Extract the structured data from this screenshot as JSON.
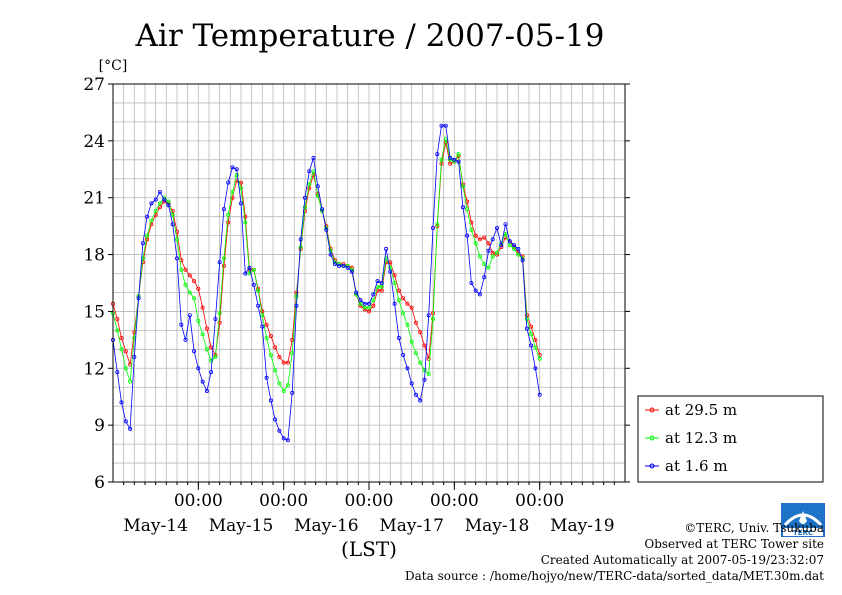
{
  "chart_data": {
    "type": "line",
    "title": "Air Temperature / 2007-05-19",
    "ylabel": "[°C]",
    "xlabel": "(LST)",
    "ylim": [
      6,
      27
    ],
    "yticks": [
      "6",
      "9",
      "12",
      "15",
      "18",
      "21",
      "24",
      "27"
    ],
    "x_day_range": [
      -0.5,
      5.5
    ],
    "time_ticks": {
      "positions": [
        0.5,
        1.5,
        2.5,
        3.5,
        4.5
      ],
      "label": "00:00"
    },
    "day_labels": [
      {
        "x": 0,
        "label": "May-14"
      },
      {
        "x": 1,
        "label": "May-15"
      },
      {
        "x": 2,
        "label": "May-16"
      },
      {
        "x": 3,
        "label": "May-17"
      },
      {
        "x": 4,
        "label": "May-18"
      },
      {
        "x": 5,
        "label": "May-19"
      }
    ],
    "grid": true,
    "legend_position": "right",
    "series": [
      {
        "name": "at 29.5 m",
        "color": "#ff0000",
        "points": [
          [
            -0.5,
            15.4
          ],
          [
            -0.45,
            14.6
          ],
          [
            -0.4,
            13.6
          ],
          [
            -0.35,
            12.9
          ],
          [
            -0.3,
            12.2
          ],
          [
            -0.25,
            13.9
          ],
          [
            -0.2,
            15.8
          ],
          [
            -0.15,
            17.6
          ],
          [
            -0.1,
            18.8
          ],
          [
            -0.05,
            19.6
          ],
          [
            0,
            20.1
          ],
          [
            0.05,
            20.5
          ],
          [
            0.1,
            20.8
          ],
          [
            0.15,
            20.7
          ],
          [
            0.2,
            20.3
          ],
          [
            0.25,
            19.2
          ],
          [
            0.3,
            17.7
          ],
          [
            0.35,
            17.2
          ],
          [
            0.4,
            16.9
          ],
          [
            0.45,
            16.6
          ],
          [
            0.5,
            16.2
          ],
          [
            0.55,
            15.2
          ],
          [
            0.6,
            14.1
          ],
          [
            0.65,
            13.1
          ],
          [
            0.7,
            12.7
          ],
          [
            0.75,
            14.4
          ],
          [
            0.8,
            17.4
          ],
          [
            0.85,
            19.7
          ],
          [
            0.9,
            21.0
          ],
          [
            0.95,
            21.9
          ],
          [
            1,
            21.8
          ],
          [
            1.05,
            20.0
          ],
          [
            1.1,
            17.2
          ],
          [
            1.15,
            17.2
          ],
          [
            1.2,
            16.2
          ],
          [
            1.25,
            15.0
          ],
          [
            1.3,
            14.3
          ],
          [
            1.35,
            13.7
          ],
          [
            1.4,
            13.1
          ],
          [
            1.45,
            12.6
          ],
          [
            1.5,
            12.3
          ],
          [
            1.55,
            12.3
          ],
          [
            1.6,
            13.5
          ],
          [
            1.65,
            16.0
          ],
          [
            1.7,
            18.3
          ],
          [
            1.75,
            20.3
          ],
          [
            1.8,
            21.5
          ],
          [
            1.85,
            22.2
          ],
          [
            1.9,
            21.2
          ],
          [
            1.95,
            20.3
          ],
          [
            2,
            19.5
          ],
          [
            2.05,
            18.3
          ],
          [
            2.1,
            17.7
          ],
          [
            2.15,
            17.5
          ],
          [
            2.2,
            17.5
          ],
          [
            2.25,
            17.4
          ],
          [
            2.3,
            17.3
          ],
          [
            2.35,
            15.9
          ],
          [
            2.4,
            15.3
          ],
          [
            2.45,
            15.1
          ],
          [
            2.5,
            15.0
          ],
          [
            2.55,
            15.3
          ],
          [
            2.6,
            16.1
          ],
          [
            2.65,
            16.1
          ],
          [
            2.7,
            17.6
          ],
          [
            2.75,
            17.6
          ],
          [
            2.8,
            16.9
          ],
          [
            2.85,
            16.1
          ],
          [
            2.9,
            15.7
          ],
          [
            2.95,
            15.4
          ],
          [
            3,
            15.2
          ],
          [
            3.05,
            14.4
          ],
          [
            3.1,
            13.9
          ],
          [
            3.15,
            13.2
          ],
          [
            3.2,
            12.5
          ],
          [
            3.25,
            14.9
          ],
          [
            3.3,
            19.5
          ],
          [
            3.35,
            22.8
          ],
          [
            3.4,
            23.9
          ],
          [
            3.45,
            22.8
          ],
          [
            3.5,
            22.9
          ],
          [
            3.55,
            23.2
          ],
          [
            3.6,
            21.7
          ],
          [
            3.65,
            20.8
          ],
          [
            3.7,
            19.7
          ],
          [
            3.75,
            19.0
          ],
          [
            3.8,
            18.8
          ],
          [
            3.85,
            18.9
          ],
          [
            3.9,
            18.6
          ],
          [
            3.95,
            18.1
          ],
          [
            4,
            18.0
          ],
          [
            4.05,
            18.4
          ],
          [
            4.1,
            18.9
          ],
          [
            4.15,
            18.7
          ],
          [
            4.2,
            18.4
          ],
          [
            4.25,
            18.1
          ],
          [
            4.3,
            17.9
          ],
          [
            4.35,
            14.8
          ],
          [
            4.4,
            14.2
          ],
          [
            4.45,
            13.5
          ],
          [
            4.5,
            12.7
          ]
        ]
      },
      {
        "name": "at 12.3 m",
        "color": "#00ff00",
        "points": [
          [
            -0.5,
            14.9
          ],
          [
            -0.45,
            14.0
          ],
          [
            -0.4,
            13.0
          ],
          [
            -0.35,
            12.0
          ],
          [
            -0.3,
            11.3
          ],
          [
            -0.25,
            13.6
          ],
          [
            -0.2,
            15.8
          ],
          [
            -0.15,
            17.8
          ],
          [
            -0.1,
            19.0
          ],
          [
            -0.05,
            19.8
          ],
          [
            0,
            20.3
          ],
          [
            0.05,
            20.7
          ],
          [
            0.1,
            21.0
          ],
          [
            0.15,
            20.8
          ],
          [
            0.2,
            20.1
          ],
          [
            0.25,
            18.8
          ],
          [
            0.3,
            17.2
          ],
          [
            0.35,
            16.4
          ],
          [
            0.4,
            16.0
          ],
          [
            0.45,
            15.7
          ],
          [
            0.5,
            14.5
          ],
          [
            0.55,
            13.8
          ],
          [
            0.6,
            13.0
          ],
          [
            0.65,
            12.4
          ],
          [
            0.7,
            12.6
          ],
          [
            0.75,
            14.9
          ],
          [
            0.8,
            17.8
          ],
          [
            0.85,
            20.1
          ],
          [
            0.9,
            21.3
          ],
          [
            0.95,
            22.2
          ],
          [
            1,
            21.5
          ],
          [
            1.05,
            19.7
          ],
          [
            1.1,
            17.0
          ],
          [
            1.15,
            17.2
          ],
          [
            1.2,
            16.1
          ],
          [
            1.25,
            14.8
          ],
          [
            1.3,
            13.6
          ],
          [
            1.35,
            12.7
          ],
          [
            1.4,
            11.9
          ],
          [
            1.45,
            11.2
          ],
          [
            1.5,
            10.8
          ],
          [
            1.55,
            11.1
          ],
          [
            1.6,
            12.8
          ],
          [
            1.65,
            15.8
          ],
          [
            1.7,
            18.4
          ],
          [
            1.75,
            20.5
          ],
          [
            1.8,
            21.7
          ],
          [
            1.85,
            22.4
          ],
          [
            1.9,
            21.1
          ],
          [
            1.95,
            20.3
          ],
          [
            2,
            19.4
          ],
          [
            2.05,
            18.2
          ],
          [
            2.1,
            17.6
          ],
          [
            2.15,
            17.5
          ],
          [
            2.2,
            17.4
          ],
          [
            2.25,
            17.4
          ],
          [
            2.3,
            17.2
          ],
          [
            2.35,
            15.9
          ],
          [
            2.4,
            15.4
          ],
          [
            2.45,
            15.2
          ],
          [
            2.5,
            15.2
          ],
          [
            2.55,
            15.6
          ],
          [
            2.6,
            16.3
          ],
          [
            2.65,
            16.3
          ],
          [
            2.7,
            17.8
          ],
          [
            2.75,
            17.3
          ],
          [
            2.8,
            16.5
          ],
          [
            2.85,
            15.6
          ],
          [
            2.9,
            14.9
          ],
          [
            2.95,
            14.3
          ],
          [
            3,
            13.4
          ],
          [
            3.05,
            12.8
          ],
          [
            3.1,
            12.3
          ],
          [
            3.15,
            11.9
          ],
          [
            3.2,
            11.7
          ],
          [
            3.25,
            14.6
          ],
          [
            3.3,
            19.6
          ],
          [
            3.35,
            23.0
          ],
          [
            3.4,
            24.1
          ],
          [
            3.45,
            23.0
          ],
          [
            3.5,
            22.9
          ],
          [
            3.55,
            23.3
          ],
          [
            3.6,
            21.6
          ],
          [
            3.65,
            20.4
          ],
          [
            3.7,
            19.3
          ],
          [
            3.75,
            18.6
          ],
          [
            3.8,
            17.9
          ],
          [
            3.85,
            17.5
          ],
          [
            3.9,
            17.3
          ],
          [
            3.95,
            17.9
          ],
          [
            4,
            18.1
          ],
          [
            4.05,
            18.6
          ],
          [
            4.1,
            19.1
          ],
          [
            4.15,
            18.5
          ],
          [
            4.2,
            18.3
          ],
          [
            4.25,
            18.0
          ],
          [
            4.3,
            17.8
          ],
          [
            4.35,
            14.6
          ],
          [
            4.4,
            13.8
          ],
          [
            4.45,
            13.1
          ],
          [
            4.5,
            12.5
          ]
        ]
      },
      {
        "name": "at 1.6 m",
        "color": "#0000ff",
        "points": [
          [
            -0.5,
            13.5
          ],
          [
            -0.45,
            11.8
          ],
          [
            -0.4,
            10.2
          ],
          [
            -0.35,
            9.2
          ],
          [
            -0.3,
            8.8
          ],
          [
            -0.25,
            12.6
          ],
          [
            -0.2,
            15.7
          ],
          [
            -0.15,
            18.6
          ],
          [
            -0.1,
            20.0
          ],
          [
            -0.05,
            20.7
          ],
          [
            0,
            20.9
          ],
          [
            0.05,
            21.3
          ],
          [
            0.1,
            20.9
          ],
          [
            0.15,
            20.6
          ],
          [
            0.2,
            19.6
          ],
          [
            0.25,
            17.8
          ],
          [
            0.3,
            14.3
          ],
          [
            0.35,
            13.5
          ],
          [
            0.4,
            14.8
          ],
          [
            0.45,
            12.9
          ],
          [
            0.5,
            12.0
          ],
          [
            0.55,
            11.3
          ],
          [
            0.6,
            10.8
          ],
          [
            0.65,
            11.8
          ],
          [
            0.7,
            14.6
          ],
          [
            0.75,
            17.6
          ],
          [
            0.8,
            20.4
          ],
          [
            0.85,
            21.8
          ],
          [
            0.9,
            22.6
          ],
          [
            0.95,
            22.5
          ],
          [
            1,
            20.7
          ],
          [
            1.05,
            17.0
          ],
          [
            1.1,
            17.3
          ],
          [
            1.15,
            16.4
          ],
          [
            1.2,
            15.3
          ],
          [
            1.25,
            14.2
          ],
          [
            1.3,
            11.5
          ],
          [
            1.35,
            10.3
          ],
          [
            1.4,
            9.3
          ],
          [
            1.45,
            8.7
          ],
          [
            1.5,
            8.3
          ],
          [
            1.55,
            8.2
          ],
          [
            1.6,
            10.7
          ],
          [
            1.65,
            15.3
          ],
          [
            1.7,
            18.8
          ],
          [
            1.75,
            21.0
          ],
          [
            1.8,
            22.4
          ],
          [
            1.85,
            23.1
          ],
          [
            1.9,
            21.6
          ],
          [
            1.95,
            20.4
          ],
          [
            2,
            19.3
          ],
          [
            2.05,
            18.0
          ],
          [
            2.1,
            17.5
          ],
          [
            2.15,
            17.4
          ],
          [
            2.2,
            17.4
          ],
          [
            2.25,
            17.3
          ],
          [
            2.3,
            17.1
          ],
          [
            2.35,
            16.0
          ],
          [
            2.4,
            15.6
          ],
          [
            2.45,
            15.4
          ],
          [
            2.5,
            15.4
          ],
          [
            2.55,
            15.9
          ],
          [
            2.6,
            16.6
          ],
          [
            2.65,
            16.5
          ],
          [
            2.7,
            18.3
          ],
          [
            2.75,
            17.1
          ],
          [
            2.8,
            15.4
          ],
          [
            2.85,
            13.6
          ],
          [
            2.9,
            12.7
          ],
          [
            2.95,
            12.0
          ],
          [
            3,
            11.2
          ],
          [
            3.05,
            10.6
          ],
          [
            3.1,
            10.3
          ],
          [
            3.15,
            11.4
          ],
          [
            3.2,
            14.8
          ],
          [
            3.25,
            19.4
          ],
          [
            3.3,
            23.3
          ],
          [
            3.35,
            24.8
          ],
          [
            3.4,
            24.8
          ],
          [
            3.45,
            23.1
          ],
          [
            3.5,
            23.0
          ],
          [
            3.55,
            22.9
          ],
          [
            3.6,
            20.5
          ],
          [
            3.65,
            19.0
          ],
          [
            3.7,
            16.5
          ],
          [
            3.75,
            16.1
          ],
          [
            3.8,
            15.9
          ],
          [
            3.85,
            16.8
          ],
          [
            3.9,
            18.2
          ],
          [
            3.95,
            18.8
          ],
          [
            4,
            19.4
          ],
          [
            4.05,
            18.5
          ],
          [
            4.1,
            19.6
          ],
          [
            4.15,
            18.7
          ],
          [
            4.2,
            18.5
          ],
          [
            4.25,
            18.3
          ],
          [
            4.3,
            17.7
          ],
          [
            4.35,
            14.1
          ],
          [
            4.4,
            13.2
          ],
          [
            4.45,
            12.0
          ],
          [
            4.5,
            10.6
          ]
        ]
      }
    ]
  },
  "credits": {
    "copyright": "©TERC, Univ. Tsukuba",
    "observed": "Observed at TERC Tower site",
    "created": "Created Automatically at 2007-05-19/23:32:07",
    "source": "Data source : /home/hojyo/new/TERC-data/sorted_data/MET.30m.dat"
  },
  "logo": {
    "text": "TERC",
    "color": "#1e73c8"
  }
}
